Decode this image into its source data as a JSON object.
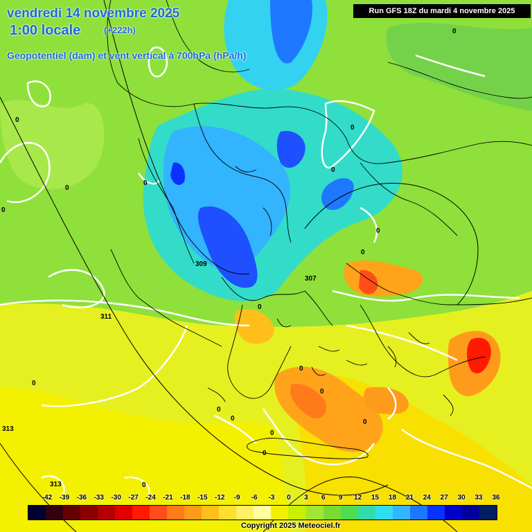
{
  "header": {
    "date": "vendredi 14 novembre 2025",
    "local_time": "1:00 locale",
    "offset": "(+222h)",
    "parameter": "Geopotentiel (dam) et vent vertical à 700hPa (hPa/h)"
  },
  "run_label": "Run GFS 18Z du mardi 4 novembre 2025",
  "scale": {
    "values": [
      "-42",
      "-39",
      "-36",
      "-33",
      "-30",
      "-27",
      "-24",
      "-21",
      "-18",
      "-15",
      "-12",
      "-9",
      "-6",
      "-3",
      "0",
      "3",
      "6",
      "9",
      "12",
      "15",
      "18",
      "21",
      "24",
      "27",
      "30",
      "33",
      "36"
    ],
    "colors": [
      "#000033",
      "#33000d",
      "#660000",
      "#8c0000",
      "#b40000",
      "#e00000",
      "#ff1a00",
      "#ff4d1a",
      "#ff7a1a",
      "#ff9b1a",
      "#ffbf1a",
      "#ffdf30",
      "#fff066",
      "#ffffa0",
      "#f0f000",
      "#c8f000",
      "#a0e632",
      "#78dc32",
      "#50dc50",
      "#32dcaa",
      "#32dcf0",
      "#32b4ff",
      "#1e78ff",
      "#0a32ff",
      "#0000c8",
      "#00009a",
      "#001e64"
    ]
  },
  "map_labels": {
    "contours": [
      "309",
      "307",
      "311",
      "313",
      "313"
    ],
    "zeros": [
      "0",
      "0",
      "0",
      "0",
      "0",
      "0",
      "0",
      "0",
      "0",
      "0",
      "0",
      "0",
      "0",
      "0",
      "0",
      "0",
      "0",
      "0",
      "0"
    ]
  },
  "colors": {
    "header_text": "#1a6bd6",
    "background_green": "#8fe03a"
  },
  "copyright": "Copyright 2025 Meteociel.fr"
}
